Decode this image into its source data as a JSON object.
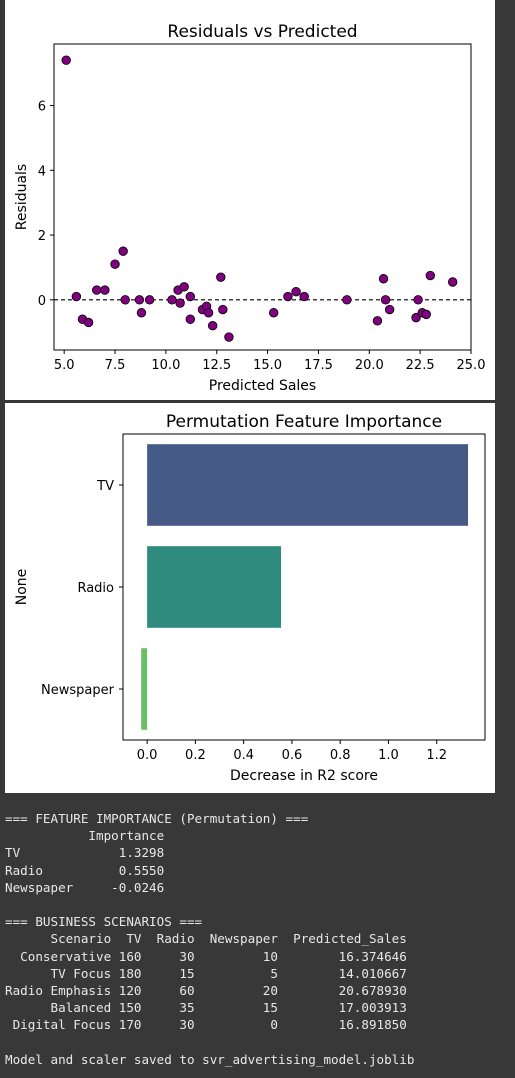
{
  "chart_data": [
    {
      "type": "scatter",
      "title": "Residuals vs Predicted",
      "xlabel": "Predicted Sales",
      "ylabel": "Residuals",
      "xlim": [
        4.5,
        25.0
      ],
      "ylim": [
        -1.55,
        7.9
      ],
      "xticks": [
        5.0,
        7.5,
        10.0,
        12.5,
        15.0,
        17.5,
        20.0,
        22.5,
        25.0
      ],
      "xtick_labels": [
        "5.0",
        "7.5",
        "10.0",
        "12.5",
        "15.0",
        "17.5",
        "20.0",
        "22.5",
        "25.0"
      ],
      "yticks": [
        0,
        2,
        4,
        6
      ],
      "ytick_labels": [
        "0",
        "2",
        "4",
        "6"
      ],
      "reference_line": 0,
      "marker_color": "#800080",
      "points": [
        {
          "x": 5.1,
          "y": 7.4
        },
        {
          "x": 5.6,
          "y": 0.1
        },
        {
          "x": 5.9,
          "y": -0.6
        },
        {
          "x": 6.2,
          "y": -0.7
        },
        {
          "x": 6.6,
          "y": 0.3
        },
        {
          "x": 7.0,
          "y": 0.3
        },
        {
          "x": 7.5,
          "y": 1.1
        },
        {
          "x": 7.9,
          "y": 1.5
        },
        {
          "x": 8.0,
          "y": 0.0
        },
        {
          "x": 8.7,
          "y": 0.0
        },
        {
          "x": 8.8,
          "y": -0.4
        },
        {
          "x": 9.2,
          "y": 0.0
        },
        {
          "x": 10.3,
          "y": 0.0
        },
        {
          "x": 10.6,
          "y": 0.3
        },
        {
          "x": 10.7,
          "y": -0.1
        },
        {
          "x": 10.9,
          "y": 0.4
        },
        {
          "x": 11.2,
          "y": -0.6
        },
        {
          "x": 11.2,
          "y": 0.1
        },
        {
          "x": 11.8,
          "y": -0.3
        },
        {
          "x": 12.0,
          "y": -0.2
        },
        {
          "x": 12.1,
          "y": -0.4
        },
        {
          "x": 12.3,
          "y": -0.8
        },
        {
          "x": 12.7,
          "y": 0.7
        },
        {
          "x": 12.8,
          "y": -0.3
        },
        {
          "x": 13.1,
          "y": -1.15
        },
        {
          "x": 15.3,
          "y": -0.4
        },
        {
          "x": 16.0,
          "y": 0.1
        },
        {
          "x": 16.4,
          "y": 0.25
        },
        {
          "x": 16.8,
          "y": 0.1
        },
        {
          "x": 18.9,
          "y": 0.0
        },
        {
          "x": 20.4,
          "y": -0.65
        },
        {
          "x": 20.7,
          "y": 0.65
        },
        {
          "x": 20.8,
          "y": 0.0
        },
        {
          "x": 21.0,
          "y": -0.3
        },
        {
          "x": 22.3,
          "y": -0.55
        },
        {
          "x": 22.4,
          "y": 0.0
        },
        {
          "x": 22.6,
          "y": -0.4
        },
        {
          "x": 22.8,
          "y": -0.45
        },
        {
          "x": 23.0,
          "y": 0.75
        },
        {
          "x": 24.1,
          "y": 0.55
        }
      ]
    },
    {
      "type": "bar",
      "orientation": "horizontal",
      "title": "Permutation Feature Importance",
      "xlabel": "Decrease in R2 score",
      "ylabel": "None",
      "categories": [
        "TV",
        "Radio",
        "Newspaper"
      ],
      "values": [
        1.3298,
        0.555,
        -0.0246
      ],
      "colors": [
        "#455a87",
        "#2e8b7e",
        "#6abf66"
      ],
      "xlim": [
        -0.1,
        1.4
      ],
      "xticks": [
        0.0,
        0.2,
        0.4,
        0.6,
        0.8,
        1.0,
        1.2
      ],
      "xtick_labels": [
        "0.0",
        "0.2",
        "0.4",
        "0.6",
        "0.8",
        "1.0",
        "1.2"
      ]
    }
  ],
  "console": {
    "lines": [
      "=== FEATURE IMPORTANCE (Permutation) ===",
      "           Importance",
      "TV             1.3298",
      "Radio          0.5550",
      "Newspaper     -0.0246",
      "",
      "=== BUSINESS SCENARIOS ===",
      "      Scenario  TV  Radio  Newspaper  Predicted_Sales",
      "  Conservative 160     30         10        16.374646",
      "      TV Focus 180     15          5        14.010667",
      "Radio Emphasis 120     60         20        20.678930",
      "      Balanced 150     35         15        17.003913",
      " Digital Focus 170     30          0        16.891850",
      "",
      "Model and scaler saved to svr_advertising_model.joblib"
    ]
  }
}
